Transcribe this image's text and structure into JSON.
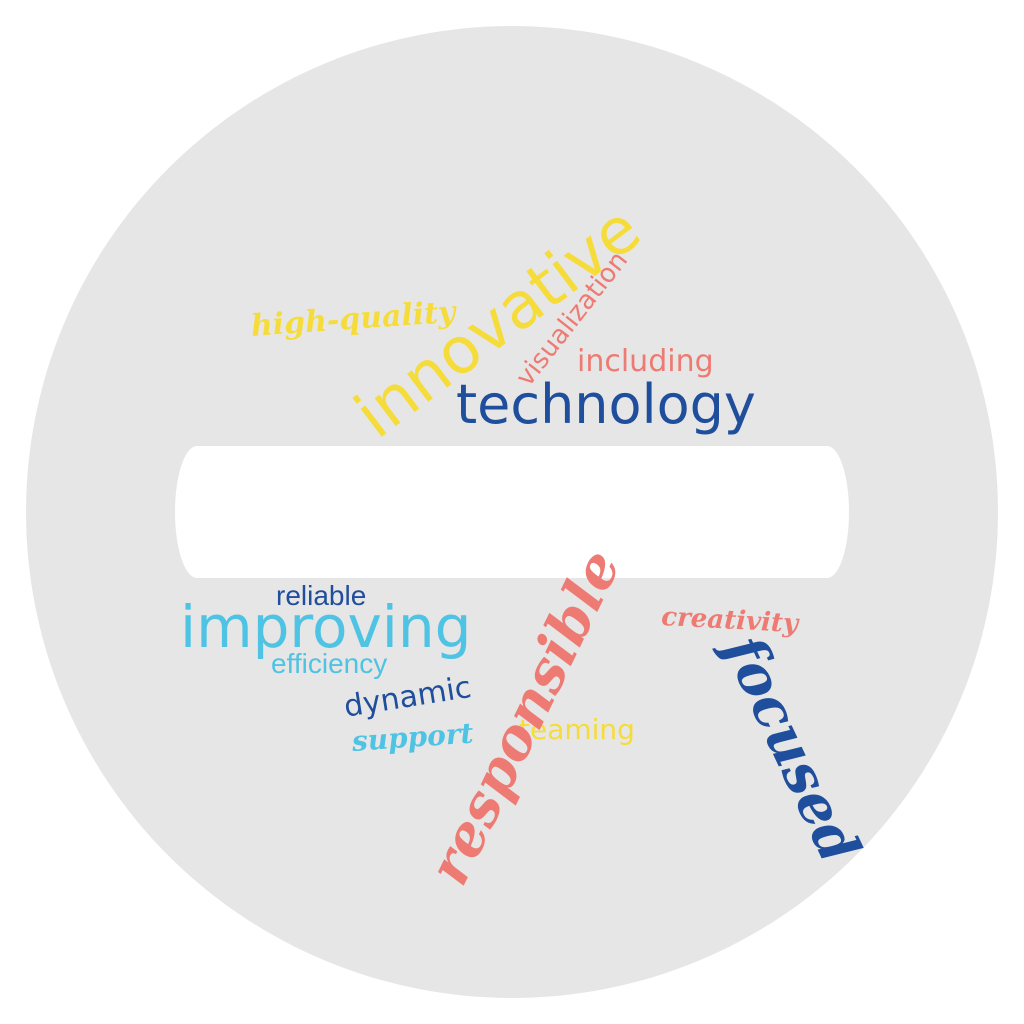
{
  "palette": {
    "background": "#ffffff",
    "disc": "#e6e6e6",
    "bar": "#ffffff",
    "yellow": "#f6dc3a",
    "salmon": "#ee7b73",
    "navy": "#1f4e9c",
    "cyan": "#4fc3e3"
  },
  "words": {
    "high_quality": "high-quality",
    "innovative": "innovative",
    "visualization": "visualization",
    "including": "including",
    "technology": "technology",
    "reliable": "reliable",
    "improving": "improving",
    "efficiency": "efficiency",
    "dynamic": "dynamic",
    "support": "support",
    "teaming": "teaming",
    "responsible": "responsible",
    "focused": "focused",
    "creativity": "creativity"
  }
}
